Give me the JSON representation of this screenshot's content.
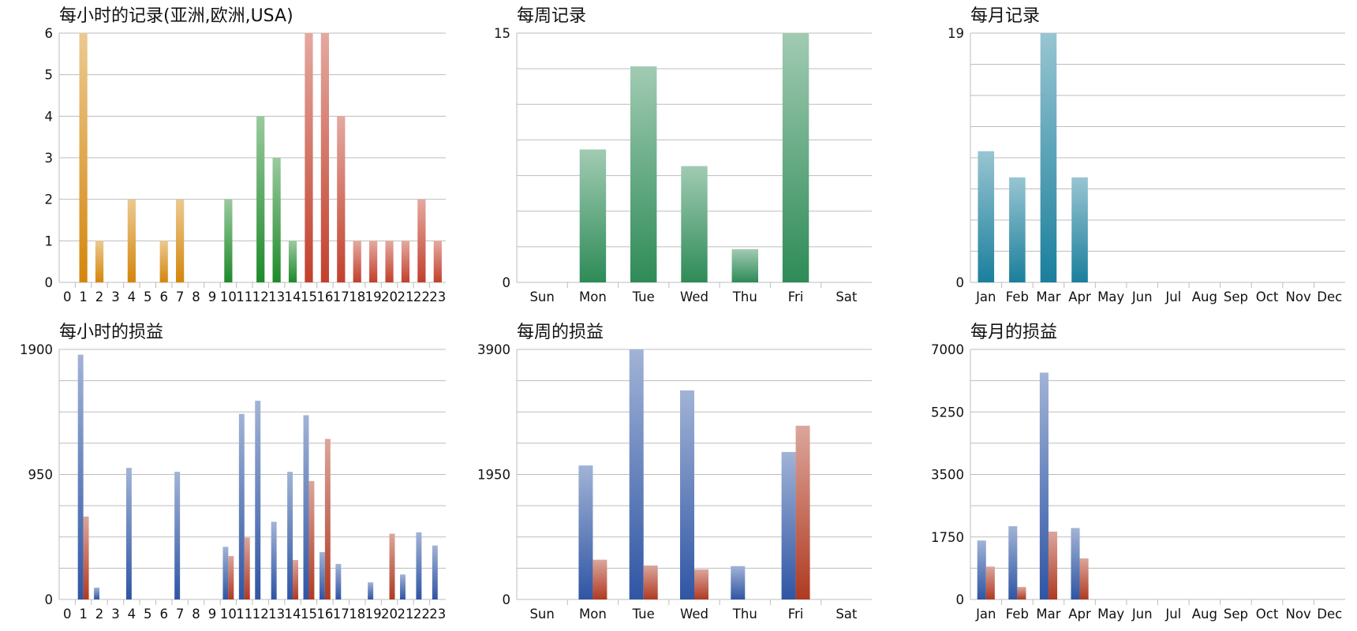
{
  "chart_data": [
    {
      "type": "bar",
      "title": "每小时的记录(亚洲,欧洲,USA)",
      "categories": [
        "0",
        "1",
        "2",
        "3",
        "4",
        "5",
        "6",
        "7",
        "8",
        "9",
        "10",
        "11",
        "12",
        "13",
        "14",
        "15",
        "16",
        "17",
        "18",
        "19",
        "20",
        "21",
        "22",
        "23"
      ],
      "values": [
        0,
        6,
        1,
        0,
        2,
        0,
        1,
        2,
        0,
        0,
        2,
        0,
        4,
        3,
        1,
        6,
        6,
        4,
        1,
        1,
        1,
        1,
        2,
        1
      ],
      "bar_colors": [
        "#d4860b",
        "#d4860b",
        "#d4860b",
        "#d4860b",
        "#d4860b",
        "#d4860b",
        "#d4860b",
        "#d4860b",
        "#d4860b",
        "#d4860b",
        "#1e8a2a",
        "#1e8a2a",
        "#1e8a2a",
        "#1e8a2a",
        "#1e8a2a",
        "#c2402c",
        "#c2402c",
        "#c2402c",
        "#c2402c",
        "#c2402c",
        "#c2402c",
        "#c2402c",
        "#c2402c",
        "#c2402c"
      ],
      "ylim": [
        0,
        6
      ],
      "yticks": [
        0,
        1,
        2,
        3,
        4,
        5,
        6
      ],
      "grid": true
    },
    {
      "type": "bar",
      "title": "每周记录",
      "categories": [
        "Sun",
        "Mon",
        "Tue",
        "Wed",
        "Thu",
        "Fri",
        "Sat"
      ],
      "values": [
        0,
        8,
        13,
        7,
        2,
        15,
        0
      ],
      "bar_color": "#2e8b57",
      "ylim": [
        0,
        15
      ],
      "yticks": [
        0,
        15
      ],
      "minor_gridlines": 7,
      "grid": true
    },
    {
      "type": "bar",
      "title": "每月记录",
      "categories": [
        "Jan",
        "Feb",
        "Mar",
        "Apr",
        "May",
        "Jun",
        "Jul",
        "Aug",
        "Sep",
        "Oct",
        "Nov",
        "Dec"
      ],
      "values": [
        10,
        8,
        19,
        8,
        0,
        0,
        0,
        0,
        0,
        0,
        0,
        0
      ],
      "bar_color": "#1a7f9c",
      "ylim": [
        0,
        19
      ],
      "yticks": [
        0,
        19
      ],
      "minor_gridlines": 8,
      "grid": true
    },
    {
      "type": "bar",
      "title": "每小时的损益",
      "categories": [
        "0",
        "1",
        "2",
        "3",
        "4",
        "5",
        "6",
        "7",
        "8",
        "9",
        "10",
        "11",
        "12",
        "13",
        "14",
        "15",
        "16",
        "17",
        "18",
        "19",
        "20",
        "21",
        "22",
        "23"
      ],
      "series": [
        {
          "values": [
            0,
            1860,
            90,
            0,
            1000,
            0,
            0,
            970,
            0,
            0,
            400,
            1410,
            1510,
            590,
            970,
            1400,
            360,
            270,
            0,
            130,
            0,
            190,
            510,
            410
          ],
          "color": "#2f55a4"
        },
        {
          "values": [
            0,
            630,
            0,
            0,
            0,
            0,
            0,
            0,
            0,
            0,
            330,
            470,
            0,
            0,
            300,
            900,
            1220,
            0,
            0,
            0,
            500,
            0,
            0,
            0
          ],
          "color": "#b03a22"
        }
      ],
      "ylim": [
        0,
        1900
      ],
      "yticks": [
        0,
        950,
        1900
      ],
      "minor_gridlines": 8,
      "grid": true
    },
    {
      "type": "bar",
      "title": "每周的损益",
      "categories": [
        "Sun",
        "Mon",
        "Tue",
        "Wed",
        "Thu",
        "Fri",
        "Sat"
      ],
      "series": [
        {
          "values": [
            0,
            2090,
            3900,
            3260,
            520,
            2300,
            0
          ],
          "color": "#2f55a4"
        },
        {
          "values": [
            0,
            620,
            530,
            470,
            0,
            2710,
            0
          ],
          "color": "#b03a22"
        }
      ],
      "ylim": [
        0,
        3900
      ],
      "yticks": [
        0,
        1950,
        3900
      ],
      "minor_gridlines": 8,
      "grid": true
    },
    {
      "type": "bar",
      "title": "每月的损益",
      "categories": [
        "Jan",
        "Feb",
        "Mar",
        "Apr",
        "May",
        "Jun",
        "Jul",
        "Aug",
        "Sep",
        "Oct",
        "Nov",
        "Dec"
      ],
      "series": [
        {
          "values": [
            1650,
            2050,
            6350,
            2000,
            0,
            0,
            0,
            0,
            0,
            0,
            0,
            0
          ],
          "color": "#2f55a4"
        },
        {
          "values": [
            920,
            350,
            1900,
            1150,
            0,
            0,
            0,
            0,
            0,
            0,
            0,
            0
          ],
          "color": "#b03a22"
        }
      ],
      "ylim": [
        0,
        7000
      ],
      "yticks": [
        0,
        1750,
        3500,
        5250,
        7000
      ],
      "minor_gridlines": 8,
      "grid": true
    }
  ]
}
